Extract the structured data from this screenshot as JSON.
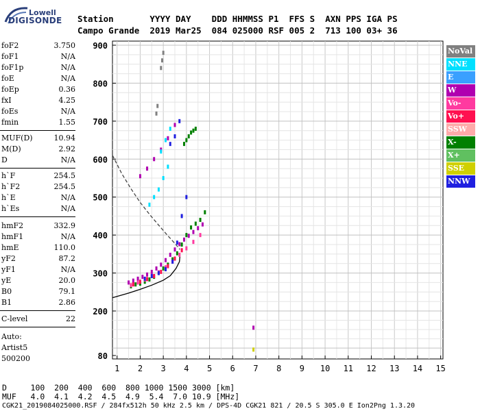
{
  "logo": {
    "top": "Lowell",
    "bottom": "DIGISONDE"
  },
  "header": {
    "row1": "Station       YYYY DAY    DDD HHMMSS P1  FFS S  AXN PPS IGA PS",
    "row2": "Campo Grande  2019 Mar25  084 025000 RSF 005 2  713 100 03+ 36"
  },
  "params": {
    "group1": [
      {
        "name": "foF2",
        "value": "3.750"
      },
      {
        "name": "foF1",
        "value": "N/A"
      },
      {
        "name": "foF1p",
        "value": "N/A"
      },
      {
        "name": "foE",
        "value": "N/A"
      },
      {
        "name": "foEp",
        "value": "0.36"
      },
      {
        "name": "fxI",
        "value": "4.25"
      },
      {
        "name": "foEs",
        "value": "N/A"
      },
      {
        "name": "fmin",
        "value": "1.55"
      }
    ],
    "group2": [
      {
        "name": "MUF(D)",
        "value": "10.94"
      },
      {
        "name": "M(D)",
        "value": "2.92"
      },
      {
        "name": "D",
        "value": "N/A"
      }
    ],
    "group3": [
      {
        "name": "h`F",
        "value": "254.5"
      },
      {
        "name": "h`F2",
        "value": "254.5"
      },
      {
        "name": "h`E",
        "value": "N/A"
      },
      {
        "name": "h`Es",
        "value": "N/A"
      }
    ],
    "group4": [
      {
        "name": "hmF2",
        "value": "332.9"
      },
      {
        "name": "hmF1",
        "value": "N/A"
      },
      {
        "name": "hmE",
        "value": "110.0"
      },
      {
        "name": "yF2",
        "value": "87.2"
      },
      {
        "name": "yF1",
        "value": "N/A"
      },
      {
        "name": "yE",
        "value": "20.0"
      },
      {
        "name": "B0",
        "value": "79.1"
      },
      {
        "name": "B1",
        "value": "2.86"
      }
    ],
    "group5": [
      {
        "name": "C-level",
        "value": "22"
      }
    ],
    "auto": [
      "Auto:",
      "Artist5",
      "500200"
    ]
  },
  "legend": [
    {
      "label": "NoVal",
      "color": "#808080"
    },
    {
      "label": "NNE",
      "color": "#00e0ff"
    },
    {
      "label": "E",
      "color": "#3aa0ff"
    },
    {
      "label": "W",
      "color": "#b000b0"
    },
    {
      "label": "Vo-",
      "color": "#ff3aa0"
    },
    {
      "label": "Vo+",
      "color": "#ff1050"
    },
    {
      "label": "SSW",
      "color": "#ffaaaa"
    },
    {
      "label": "X-",
      "color": "#008000"
    },
    {
      "label": "X+",
      "color": "#60c060"
    },
    {
      "label": "SSE",
      "color": "#d0d000"
    },
    {
      "label": "NNW",
      "color": "#2020e0"
    }
  ],
  "footer": {
    "row1": "D     100  200  400  600  800 1000 1500 3000 [km]",
    "row2": "MUF   4.0  4.1  4.2  4.5  4.9  5.4  7.0 10.9 [MHz]",
    "row3": "CGK21_2019084025000.RSF / 284fx512h 50 kHz 2.5 km / DPS-4D CGK21 821 / 20.5 S 305.0 E Ion2Png 1.3.20"
  },
  "chart_data": {
    "type": "scatter",
    "xlabel": "",
    "ylabel": "",
    "xlim": [
      0.8,
      15.1
    ],
    "ylim": [
      80,
      910
    ],
    "x_ticks": [
      "1",
      "2",
      "3",
      "4",
      "5",
      "6",
      "7",
      "8",
      "9",
      "10",
      "11",
      "12",
      "13",
      "14",
      "15"
    ],
    "y_ticks": [
      "80",
      "200",
      "300",
      "400",
      "500",
      "600",
      "700",
      "800",
      "900"
    ],
    "grid": true,
    "traces": [
      {
        "name": "O-trace profile",
        "color": "#000000",
        "style": "solid",
        "x": [
          0.8,
          1.5,
          2.0,
          2.5,
          3.0,
          3.3,
          3.55,
          3.7,
          3.72
        ],
        "y": [
          235,
          247,
          257,
          268,
          281,
          293,
          312,
          330,
          345
        ]
      },
      {
        "name": "MUF curve",
        "color": "#444444",
        "style": "dashed",
        "x": [
          0.8,
          1.2,
          1.6,
          2.0,
          2.4,
          2.8,
          3.2,
          3.5,
          3.72
        ],
        "y": [
          610,
          562,
          522,
          486,
          455,
          426,
          398,
          378,
          362
        ]
      }
    ],
    "points": [
      {
        "series": "X-",
        "color": "#008000",
        "x": [
          1.6,
          1.8,
          2.0,
          2.2,
          2.4,
          2.6,
          2.8,
          3.0,
          3.2,
          3.4,
          3.6,
          3.8,
          4.0,
          4.2,
          4.4,
          4.6,
          4.8,
          3.9,
          4.0,
          4.1,
          4.2,
          4.3,
          4.4
        ],
        "y": [
          265,
          270,
          272,
          277,
          283,
          290,
          300,
          312,
          322,
          336,
          352,
          375,
          400,
          420,
          430,
          440,
          460,
          640,
          650,
          660,
          670,
          675,
          680
        ]
      },
      {
        "series": "W",
        "color": "#b000b0",
        "x": [
          1.5,
          1.7,
          1.9,
          2.1,
          2.3,
          2.5,
          2.7,
          2.9,
          3.1,
          3.3,
          3.5,
          3.7,
          3.9,
          4.1,
          4.3,
          4.5,
          4.7,
          2.0,
          2.3,
          2.6,
          2.9,
          3.2,
          3.5
        ],
        "y": [
          275,
          280,
          285,
          290,
          296,
          303,
          312,
          322,
          334,
          348,
          362,
          376,
          388,
          398,
          408,
          418,
          428,
          555,
          575,
          600,
          625,
          655,
          690
        ]
      },
      {
        "series": "Vo-",
        "color": "#ff3aa0",
        "x": [
          1.6,
          1.9,
          2.2,
          2.5,
          2.8,
          3.1,
          3.4,
          3.7,
          4.0,
          4.3,
          4.6
        ],
        "y": [
          268,
          275,
          283,
          292,
          302,
          315,
          330,
          348,
          365,
          382,
          400
        ]
      },
      {
        "series": "NNW",
        "color": "#2020e0",
        "x": [
          2.2,
          2.5,
          2.8,
          3.1,
          3.4,
          3.6,
          3.8,
          4.0,
          3.3,
          3.5,
          3.7
        ],
        "y": [
          285,
          292,
          300,
          310,
          330,
          380,
          450,
          500,
          640,
          660,
          700
        ]
      },
      {
        "series": "NNE",
        "color": "#00e0ff",
        "x": [
          2.4,
          2.6,
          2.8,
          3.0,
          3.2,
          2.9,
          3.1,
          3.3
        ],
        "y": [
          480,
          500,
          520,
          550,
          580,
          620,
          650,
          680
        ]
      },
      {
        "series": "Vo+",
        "color": "#ff1050",
        "x": [
          1.7,
          2.0,
          2.3,
          2.6,
          2.9,
          3.2,
          3.5,
          3.8
        ],
        "y": [
          270,
          277,
          284,
          292,
          303,
          318,
          338,
          360
        ]
      },
      {
        "series": "NoVal",
        "color": "#808080",
        "x": [
          2.9,
          2.95,
          3.0,
          2.7,
          2.75
        ],
        "y": [
          840,
          860,
          880,
          720,
          740
        ]
      },
      {
        "series": "W",
        "color": "#b000b0",
        "x": [
          6.9
        ],
        "y": [
          155
        ]
      },
      {
        "series": "SSE",
        "color": "#d0d000",
        "x": [
          6.9
        ],
        "y": [
          96
        ]
      }
    ]
  }
}
